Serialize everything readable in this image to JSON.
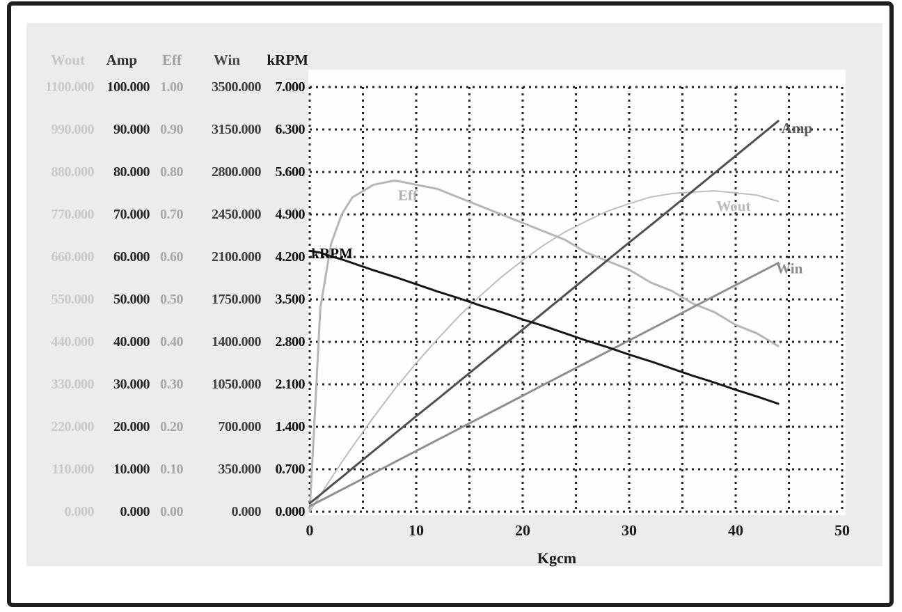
{
  "colors": {
    "frame_border": "#1e1e1e",
    "panel_bg": "#ececec",
    "plot_bg": "#fdfdfd",
    "grid": "#242424"
  },
  "scale_table": {
    "columns": [
      {
        "name": "Wout",
        "header": "Wout",
        "text_color": "#c9c9c9",
        "header_color": "#c6c6c6",
        "values": [
          "1100.000",
          "990.000",
          "880.000",
          "770.000",
          "660.000",
          "550.000",
          "440.000",
          "330.000",
          "220.000",
          "110.000",
          "0.000"
        ]
      },
      {
        "name": "Amp",
        "header": "Amp",
        "text_color": "#262626",
        "header_color": "#2e2e2e",
        "values": [
          "100.000",
          "90.000",
          "80.000",
          "70.000",
          "60.000",
          "50.000",
          "40.000",
          "30.000",
          "20.000",
          "10.000",
          "0.000"
        ]
      },
      {
        "name": "Eff",
        "header": "Eff",
        "text_color": "#a8a8a8",
        "header_color": "#9e9e9e",
        "values": [
          "1.00",
          "0.90",
          "0.80",
          "0.70",
          "0.60",
          "0.50",
          "0.40",
          "0.30",
          "0.20",
          "0.10",
          "0.00"
        ]
      },
      {
        "name": "Win",
        "header": "Win",
        "text_color": "#3e3e3e",
        "header_color": "#4a4a4a",
        "values": [
          "3500.000",
          "3150.000",
          "2800.000",
          "2450.000",
          "2100.000",
          "1750.000",
          "1400.000",
          "1050.000",
          "700.000",
          "350.000",
          "0.000"
        ]
      },
      {
        "name": "kRPM",
        "header": "kRPM",
        "text_color": "#101010",
        "header_color": "#1a1a1a",
        "values": [
          "7.000",
          "6.300",
          "5.600",
          "4.900",
          "4.200",
          "3.500",
          "2.800",
          "2.100",
          "1.400",
          "0.700",
          "0.000"
        ]
      }
    ]
  },
  "chart_data": {
    "type": "line",
    "title": "",
    "xlabel": "Kgcm",
    "xlim": [
      0,
      50
    ],
    "x_ticks": [
      0,
      10,
      20,
      30,
      40,
      50
    ],
    "grid": {
      "style": "dotted",
      "x_interval": 5,
      "y_divisions": 10,
      "on": true
    },
    "legend_position": "labels-on-curves",
    "x": [
      0,
      1,
      2,
      3,
      4,
      6,
      8,
      10,
      12,
      14,
      16,
      18,
      20,
      22,
      24,
      26,
      28,
      30,
      32,
      34,
      36,
      38,
      40,
      42,
      44
    ],
    "series": [
      {
        "name": "Wout",
        "ylim": [
          0,
          1100
        ],
        "color": "#bdbdbd",
        "width": 2,
        "values": [
          0,
          44,
          86,
          128,
          168,
          245,
          318,
          385,
          447,
          506,
          559,
          608,
          651,
          691,
          725,
          753,
          779,
          798,
          815,
          824,
          828,
          831,
          826,
          820,
          804
        ],
        "label": {
          "text": "Wout",
          "x": 38.2,
          "y": 792,
          "color": "#b9b9b9"
        }
      },
      {
        "name": "Amp",
        "ylim": [
          0,
          100
        ],
        "color": "#4f4f4f",
        "width": 3,
        "values": [
          2.0,
          4.0,
          6.1,
          8.1,
          10.2,
          14.3,
          18.4,
          22.5,
          26.5,
          30.6,
          34.7,
          38.8,
          42.9,
          47.0,
          51.1,
          55.2,
          59.3,
          63.4,
          67.4,
          71.5,
          75.6,
          79.7,
          83.8,
          87.9,
          92.0
        ],
        "label": {
          "text": "Amp",
          "x": 44.3,
          "y": 90.3,
          "color": "#575757"
        }
      },
      {
        "name": "Eff",
        "ylim": [
          0,
          1.0
        ],
        "color": "#b6b6b6",
        "width": 3,
        "values": [
          0,
          0.48,
          0.63,
          0.7,
          0.74,
          0.77,
          0.78,
          0.77,
          0.76,
          0.74,
          0.72,
          0.7,
          0.68,
          0.66,
          0.64,
          0.61,
          0.59,
          0.57,
          0.54,
          0.52,
          0.49,
          0.47,
          0.44,
          0.42,
          0.39
        ],
        "label": {
          "text": "Eff",
          "x": 8.3,
          "y": 0.745,
          "color": "#aeaeae"
        }
      },
      {
        "name": "Win",
        "ylim": [
          0,
          3500
        ],
        "color": "#8f8f8f",
        "width": 3,
        "values": [
          45,
          91,
          136,
          182,
          227,
          318,
          410,
          501,
          592,
          683,
          774,
          865,
          956,
          1048,
          1139,
          1230,
          1321,
          1412,
          1503,
          1594,
          1686,
          1777,
          1868,
          1959,
          2050
        ],
        "label": {
          "text": "Win",
          "x": 43.8,
          "y": 2005,
          "color": "#8a8a8a"
        }
      },
      {
        "name": "kRPM",
        "ylim": [
          0,
          7.0
        ],
        "color": "#171717",
        "width": 3,
        "values": [
          4.3,
          4.27,
          4.21,
          4.16,
          4.1,
          3.98,
          3.87,
          3.75,
          3.63,
          3.52,
          3.4,
          3.29,
          3.17,
          3.06,
          2.94,
          2.82,
          2.71,
          2.59,
          2.48,
          2.36,
          2.24,
          2.13,
          2.01,
          1.9,
          1.78
        ],
        "label": {
          "text": "kRPM",
          "x": 0.15,
          "y": 4.26,
          "color": "#0e0e0e"
        }
      }
    ]
  }
}
